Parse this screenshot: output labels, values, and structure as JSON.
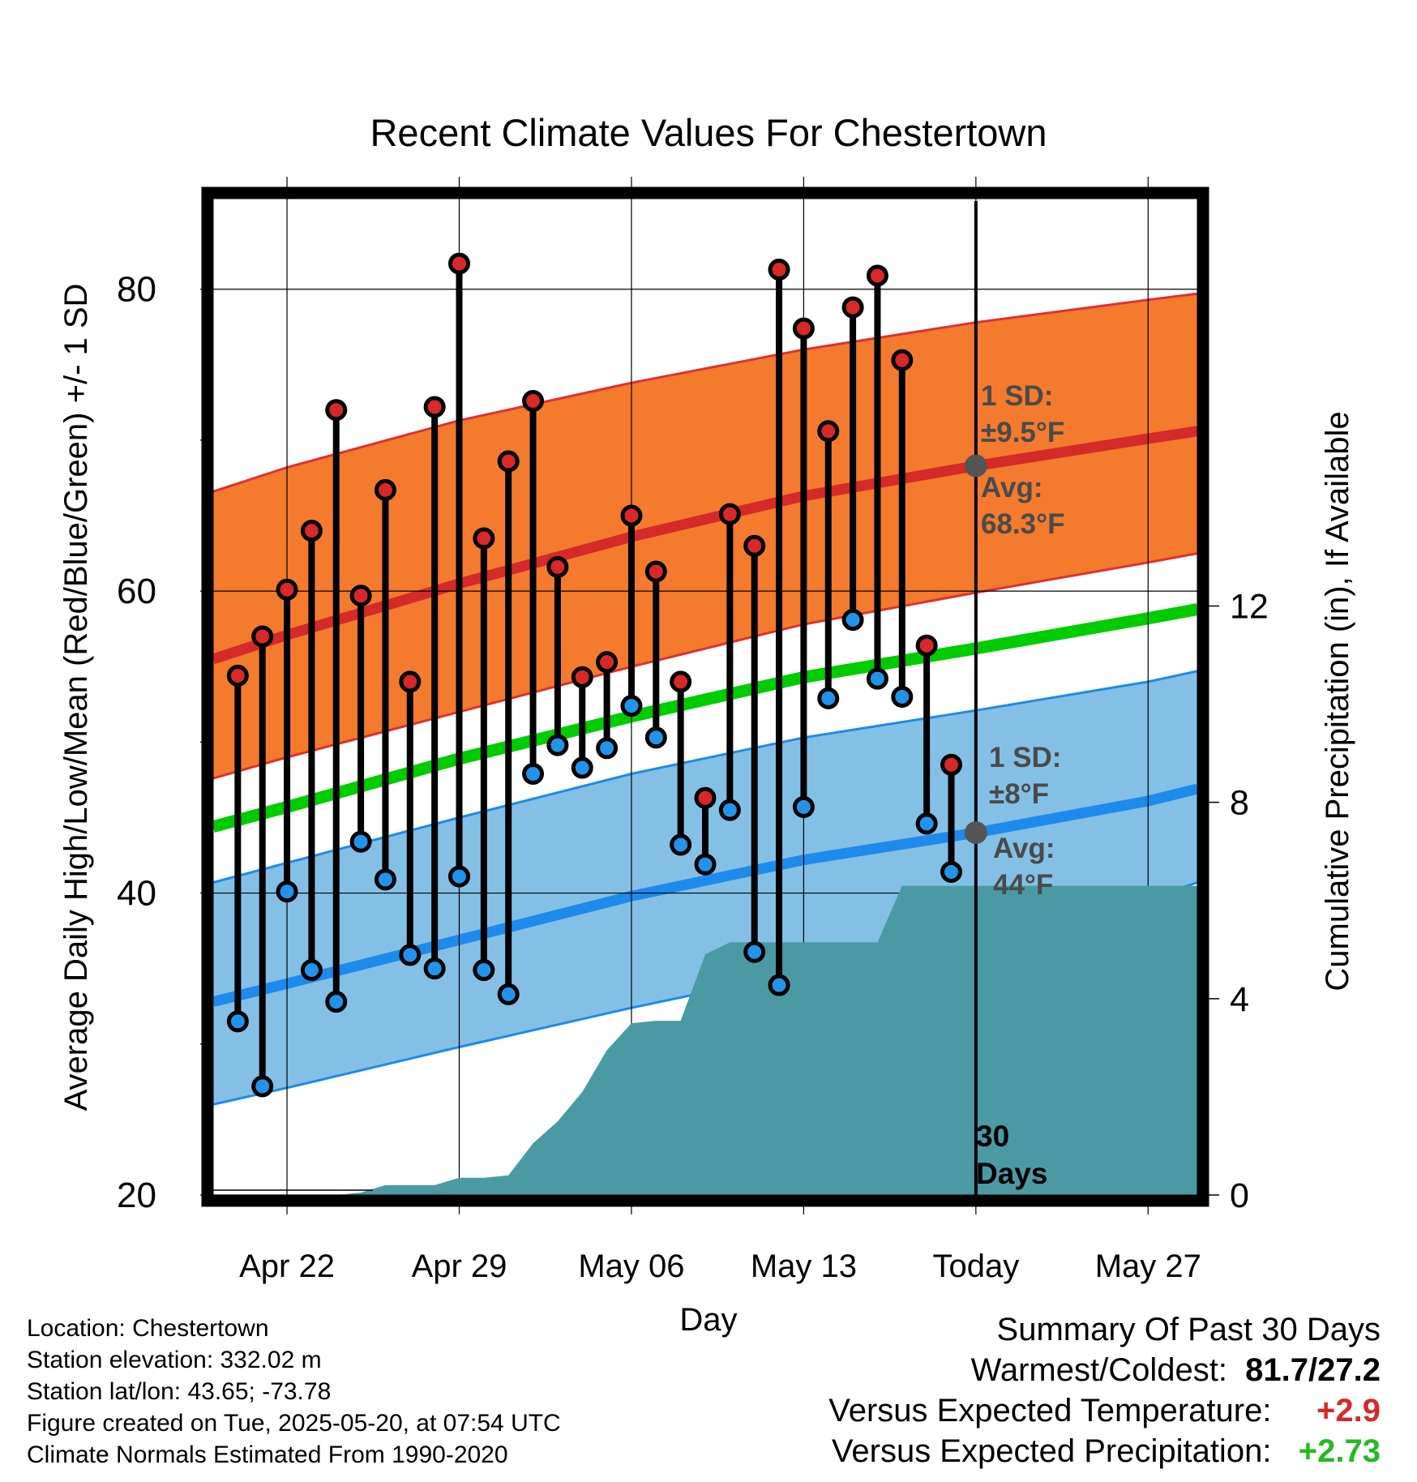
{
  "chart_data": {
    "type": "line",
    "title": "Recent Climate Values For Chestertown",
    "xlabel": "Day",
    "ylabel": "Average Daily High/Low/Mean (Red/Blue/Green) +/- 1 SD",
    "y2label": "Cumulative Precipitation (in), If Available",
    "ylim": [
      20,
      86
    ],
    "y2lim": [
      0,
      20.3
    ],
    "y_ticks": [
      "20",
      "40",
      "60",
      "80"
    ],
    "y2_ticks": [
      "0",
      "4",
      "8",
      "12"
    ],
    "x_ticks": [
      "Apr 22",
      "Apr 29",
      "May 06",
      "May 13",
      "Today",
      "May 27"
    ],
    "x_tick_days": [
      22,
      29,
      36,
      43,
      50,
      57
    ],
    "today_day": 50,
    "today_label": "30 Days",
    "grid": true,
    "colors": {
      "high_band": "#f47a2e",
      "high_band_edge": "#e03030",
      "high_avg": "#d42a2a",
      "mean_avg": "#00cc00",
      "low_band": "#84c0e6",
      "low_band_edge": "#1e8aeb",
      "low_avg": "#1e8aeb",
      "precip": "#4a9aa4",
      "high_point": "#d82828",
      "low_point": "#2194ea",
      "annotation": "#4a4a4a",
      "positive": "#d42a2a",
      "precip_positive": "#22bb22"
    },
    "normals": {
      "x": [
        19,
        22,
        29,
        36,
        43,
        50,
        57,
        59
      ],
      "high_avg": [
        55.5,
        57.1,
        60.5,
        63.6,
        66.3,
        68.3,
        70.1,
        70.6
      ],
      "high_plus_sd": [
        66.6,
        68.2,
        71.3,
        73.8,
        76.0,
        77.8,
        79.3,
        79.7
      ],
      "high_minus_sd": [
        47.6,
        49.0,
        52.0,
        55.0,
        57.8,
        59.9,
        61.9,
        62.5
      ],
      "mean_avg": [
        44.4,
        45.7,
        48.9,
        51.7,
        54.3,
        56.2,
        58.2,
        58.8
      ],
      "low_avg": [
        32.8,
        34.0,
        36.9,
        39.8,
        42.2,
        44.0,
        46.1,
        46.9
      ],
      "low_plus_sd": [
        40.7,
        42.0,
        45.0,
        47.9,
        50.3,
        52.1,
        54.0,
        54.7
      ],
      "low_minus_sd": [
        26.0,
        27.1,
        29.8,
        32.4,
        34.8,
        37.0,
        39.6,
        40.7
      ]
    },
    "annotations": {
      "high_sd": [
        "1 SD:",
        "±9.5°F"
      ],
      "high_avg": [
        "Avg:",
        "68.3°F"
      ],
      "low_sd": [
        "1 SD:",
        "±8°F"
      ],
      "low_avg": [
        "Avg:",
        "44°F"
      ]
    },
    "series": [
      {
        "name": "High",
        "x": [
          20,
          21,
          22,
          23,
          24,
          25,
          26,
          27,
          28,
          29,
          30,
          31,
          32,
          33,
          34,
          35,
          36,
          37,
          38,
          39,
          40,
          41,
          42,
          43,
          44,
          45,
          46,
          47,
          48,
          49
        ],
        "values": [
          54.4,
          57.0,
          60.1,
          64.0,
          72.0,
          59.7,
          66.7,
          54.0,
          72.2,
          81.7,
          63.5,
          68.6,
          72.6,
          61.6,
          54.3,
          55.3,
          65.0,
          61.3,
          54.0,
          46.3,
          65.1,
          63.0,
          81.3,
          77.4,
          70.6,
          78.8,
          80.9,
          75.3,
          56.4,
          48.5
        ]
      },
      {
        "name": "Low",
        "x": [
          20,
          21,
          22,
          23,
          24,
          25,
          26,
          27,
          28,
          29,
          30,
          31,
          32,
          33,
          34,
          35,
          36,
          37,
          38,
          39,
          40,
          41,
          42,
          43,
          44,
          45,
          46,
          47,
          48,
          49
        ],
        "values": [
          31.5,
          27.2,
          40.1,
          34.9,
          32.8,
          43.4,
          40.9,
          35.9,
          35.0,
          41.1,
          34.9,
          33.3,
          47.9,
          49.8,
          48.3,
          49.6,
          52.4,
          50.3,
          43.2,
          41.9,
          45.5,
          36.1,
          33.9,
          45.7,
          52.9,
          58.1,
          54.2,
          53.0,
          44.6,
          41.4
        ]
      },
      {
        "name": "Cumulative Precipitation",
        "x": [
          19,
          23,
          24,
          25,
          26,
          27,
          28,
          29,
          30,
          31,
          32,
          33,
          34,
          35,
          36,
          37,
          38,
          39,
          40,
          41,
          42,
          43,
          44,
          45,
          46,
          47,
          48,
          49,
          50,
          51,
          52,
          53,
          54,
          55,
          56,
          57,
          58,
          59
        ],
        "values": [
          0,
          0,
          0,
          0.05,
          0.2,
          0.2,
          0.2,
          0.35,
          0.35,
          0.4,
          1.05,
          1.5,
          2.1,
          2.95,
          3.5,
          3.55,
          3.55,
          4.9,
          5.15,
          5.15,
          5.15,
          5.15,
          5.15,
          5.15,
          5.15,
          6.3,
          6.3,
          6.3,
          6.3,
          6.3,
          6.3,
          6.3,
          6.3,
          6.3,
          6.3,
          6.3,
          6.3,
          6.3
        ]
      }
    ]
  },
  "footer": {
    "location": "Location: Chestertown",
    "elevation": "Station elevation: 332.02 m",
    "latlon": "Station lat/lon: 43.65; -73.78",
    "created": "Figure created on Tue, 2025-05-20, at 07:54 UTC",
    "normals": "Climate Normals Estimated From 1990-2020"
  },
  "summary": {
    "title": "Summary Of Past 30 Days",
    "warmest_label": "Warmest/Coldest:",
    "warmest_value": "81.7/27.2",
    "temp_label": "Versus Expected Temperature:",
    "temp_value": "+2.9",
    "precip_label": "Versus Expected Precipitation:",
    "precip_value": "+2.73"
  }
}
